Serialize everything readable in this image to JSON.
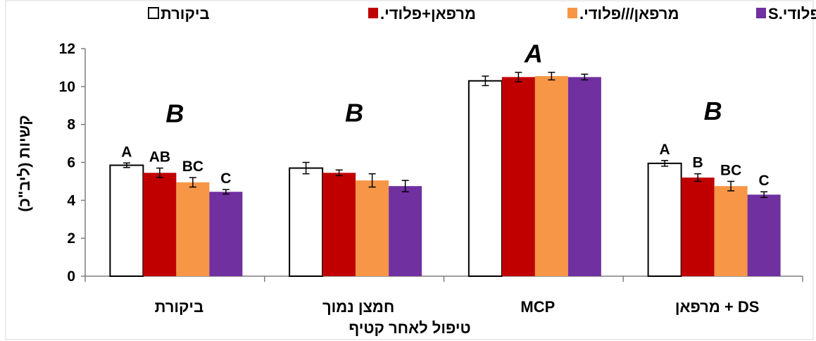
{
  "chart_data": {
    "type": "bar",
    "xlabel": "טיפול לאחר קטיף",
    "ylabel": "קשיות (ליב\"כ)",
    "ylim": [
      0,
      12
    ],
    "yticks": [
      "0",
      "2",
      "4",
      "6",
      "8",
      "10",
      "12"
    ],
    "grid": false,
    "legend_position": "top",
    "categories": [
      "ביקורת",
      "חמצן נמוך",
      "MCP",
      "מרפאן + DS"
    ],
    "series": [
      {
        "name": "ביקורת",
        "color": "#ffffff",
        "values": [
          5.85,
          5.7,
          10.3,
          5.95
        ],
        "errors": [
          0.12,
          0.3,
          0.25,
          0.15
        ]
      },
      {
        "name": "מרפאן+פלודי.",
        "color": "#c00000",
        "values": [
          5.45,
          5.45,
          10.5,
          5.2
        ],
        "errors": [
          0.25,
          0.15,
          0.25,
          0.2
        ]
      },
      {
        "name": "מרפאן///פלודי.",
        "color": "#f79646",
        "values": [
          4.95,
          5.05,
          10.55,
          4.75
        ],
        "errors": [
          0.25,
          0.35,
          0.2,
          0.25
        ]
      },
      {
        "name": "פלודי.S",
        "color": "#7030a0",
        "values": [
          4.45,
          4.75,
          10.5,
          4.3
        ],
        "errors": [
          0.12,
          0.3,
          0.15,
          0.15
        ]
      }
    ],
    "bar_labels": [
      [
        "A",
        "AB",
        "BC",
        "C"
      ],
      [
        "",
        "",
        "",
        ""
      ],
      [
        "",
        "",
        "",
        ""
      ],
      [
        "A",
        "B",
        "BC",
        "C"
      ]
    ],
    "group_labels": [
      "B",
      "B",
      "A",
      "B"
    ]
  }
}
